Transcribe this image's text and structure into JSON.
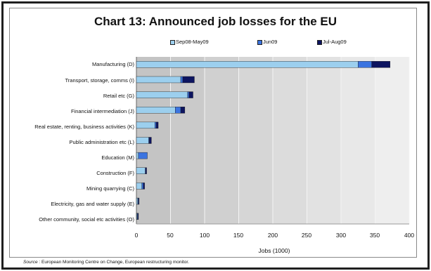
{
  "chart_data": {
    "type": "bar",
    "orientation": "horizontal",
    "stacked": true,
    "title": "Chart 13: Announced job losses for the EU",
    "xlabel": "Jobs (1000)",
    "ylabel": "",
    "xlim": [
      0,
      400
    ],
    "xticks": [
      "0",
      "50",
      "100",
      "150",
      "200",
      "250",
      "300",
      "350",
      "400"
    ],
    "legend_position": "top",
    "grid": true,
    "categories": [
      "Manufacturing (D)",
      "Transport, storage, comms (I)",
      "Retail etc (G)",
      "Financial intermediation (J)",
      "Real estate, renting, business activities (K)",
      "Public administration etc (L)",
      "Education (M)",
      "Construction (F)",
      "Mining quarrying (C)",
      "Electricity, gas and water supply (E)",
      "Other community, social etc activities (O)"
    ],
    "series": [
      {
        "name": "Sep08-May09",
        "color": "#9ccfee",
        "values": [
          325,
          65,
          75,
          57,
          27,
          18,
          3,
          13,
          8,
          2,
          1
        ]
      },
      {
        "name": "Jun09",
        "color": "#3b74e0",
        "values": [
          20,
          3,
          2,
          8,
          2,
          1,
          13,
          0,
          2,
          1,
          1
        ]
      },
      {
        "name": "Jul-Aug09",
        "color": "#0d1460",
        "values": [
          27,
          17,
          6,
          6,
          3,
          3,
          0,
          2,
          2,
          1,
          1
        ]
      }
    ]
  },
  "source": {
    "label": "Source",
    "text": " : European Monitoring Centre on Change, European restructuring monitor."
  }
}
